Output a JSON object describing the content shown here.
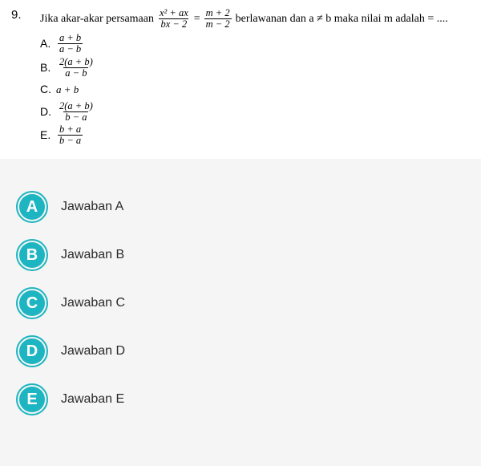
{
  "question": {
    "number": "9.",
    "stem_pre": "Jika akar-akar persamaan",
    "eq_lhs_num": "x² + ax",
    "eq_lhs_den": "bx − 2",
    "eq_mid": "=",
    "eq_rhs_num": "m + 2",
    "eq_rhs_den": "m − 2",
    "stem_post": "berlawanan dan a ≠ b maka nilai m adalah = ....",
    "options": [
      {
        "label": "A.",
        "type": "frac",
        "num": "a + b",
        "den": "a − b"
      },
      {
        "label": "B.",
        "type": "frac",
        "num": "2(a + b)",
        "den": "a − b"
      },
      {
        "label": "C.",
        "type": "plain",
        "text": "a + b"
      },
      {
        "label": "D.",
        "type": "frac",
        "num": "2(a + b)",
        "den": "b − a"
      },
      {
        "label": "E.",
        "type": "frac",
        "num": "b + a",
        "den": "b − a"
      }
    ]
  },
  "answers": [
    {
      "letter": "A",
      "text": "Jawaban A"
    },
    {
      "letter": "B",
      "text": "Jawaban B"
    },
    {
      "letter": "C",
      "text": "Jawaban C"
    },
    {
      "letter": "D",
      "text": "Jawaban D"
    },
    {
      "letter": "E",
      "text": "Jawaban E"
    }
  ],
  "colors": {
    "badge": "#1db5c1",
    "body_bg": "#f5f5f5",
    "panel_bg": "#ffffff",
    "text": "#000000",
    "answer_text": "#2b2b2b"
  }
}
